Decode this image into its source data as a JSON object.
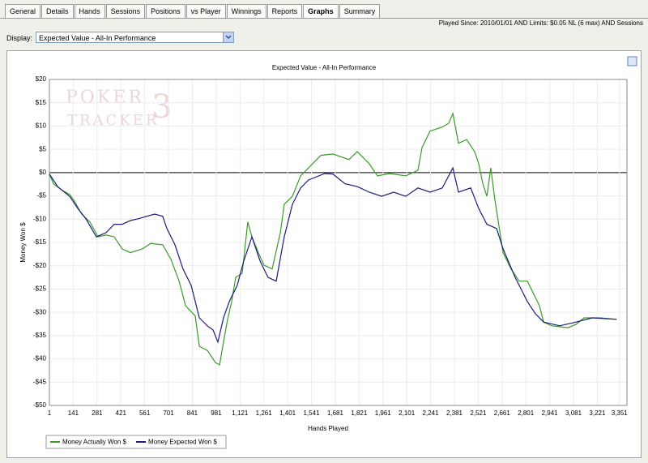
{
  "tabs": [
    "General",
    "Details",
    "Hands",
    "Sessions",
    "Positions",
    "vs Player",
    "Winnings",
    "Reports",
    "Graphs",
    "Summary"
  ],
  "active_tab": 8,
  "filter_text": "Played Since: 2010/01/01 AND Limits: $0.05 NL (6 max) AND Sessions",
  "display_label": "Display:",
  "display_value": "Expected Value - All-In Performance",
  "chart_data": {
    "type": "line",
    "title": "Expected Value - All-In Performance",
    "xlabel": "Hands Played",
    "ylabel": "Money Won $",
    "watermark": [
      "POKER",
      "TRACKER",
      "3"
    ],
    "xlim": [
      1,
      3395
    ],
    "ylim": [
      -50,
      20
    ],
    "xticks": [
      1,
      141,
      281,
      421,
      561,
      701,
      841,
      981,
      {
        "value": 1121,
        "label": "1,121"
      },
      {
        "value": 1261,
        "label": "1,261"
      },
      {
        "value": 1401,
        "label": "1,401"
      },
      {
        "value": 1541,
        "label": "1,541"
      },
      {
        "value": 1681,
        "label": "1,681"
      },
      {
        "value": 1821,
        "label": "1,821"
      },
      {
        "value": 1961,
        "label": "1,961"
      },
      {
        "value": 2101,
        "label": "2,101"
      },
      {
        "value": 2241,
        "label": "2,241"
      },
      {
        "value": 2381,
        "label": "2,381"
      },
      {
        "value": 2521,
        "label": "2,521"
      },
      {
        "value": 2661,
        "label": "2,661"
      },
      {
        "value": 2801,
        "label": "2,801"
      },
      {
        "value": 2941,
        "label": "2,941"
      },
      {
        "value": 3081,
        "label": "3,081"
      },
      {
        "value": 3221,
        "label": "3,221"
      },
      {
        "value": 3351,
        "label": "3,351"
      }
    ],
    "yticks": [
      {
        "value": 20,
        "label": "$20"
      },
      {
        "value": 15,
        "label": "$15"
      },
      {
        "value": 10,
        "label": "$10"
      },
      {
        "value": 5,
        "label": "$5"
      },
      {
        "value": 0,
        "label": "$0"
      },
      {
        "value": -5,
        "label": "-$5"
      },
      {
        "value": -10,
        "label": "-$10"
      },
      {
        "value": -15,
        "label": "-$15"
      },
      {
        "value": -20,
        "label": "-$20"
      },
      {
        "value": -25,
        "label": "-$25"
      },
      {
        "value": -30,
        "label": "-$30"
      },
      {
        "value": -35,
        "label": "-$35"
      },
      {
        "value": -40,
        "label": "-$40"
      },
      {
        "value": -45,
        "label": "-$45"
      },
      {
        "value": -50,
        "label": "-$50"
      }
    ],
    "grid": true,
    "zero_line": true,
    "legend": "bottom-left",
    "series": [
      {
        "name": "Money Actually Won $",
        "color": "#3a9a2a",
        "x": [
          1,
          25,
          72,
          120,
          144,
          191,
          239,
          287,
          334,
          382,
          429,
          477,
          548,
          596,
          667,
          715,
          763,
          801,
          858,
          882,
          929,
          977,
          1001,
          1024,
          1048,
          1072,
          1096,
          1134,
          1167,
          1191,
          1229,
          1262,
          1310,
          1358,
          1381,
          1429,
          1477,
          1524,
          1596,
          1667,
          1762,
          1810,
          1881,
          1929,
          2000,
          2095,
          2167,
          2191,
          2238,
          2310,
          2348,
          2372,
          2405,
          2453,
          2500,
          2524,
          2548,
          2572,
          2595,
          2619,
          2667,
          2714,
          2762,
          2810,
          2881,
          2905,
          2953,
          3048,
          3096,
          3143,
          3239,
          3334
        ],
        "values": [
          -0.3,
          -2.4,
          -3.7,
          -4.7,
          -5.9,
          -8.9,
          -10.6,
          -13.8,
          -13.4,
          -13.8,
          -16.4,
          -17.2,
          -16.4,
          -15.2,
          -15.5,
          -18.6,
          -23.3,
          -28.6,
          -30.8,
          -37.3,
          -38.2,
          -40.8,
          -41.3,
          -36.4,
          -31.5,
          -27.7,
          -22.5,
          -21.6,
          -10.6,
          -13.8,
          -17.2,
          -19.9,
          -20.7,
          -12.9,
          -6.8,
          -5.1,
          -0.7,
          1.0,
          3.7,
          4.0,
          2.8,
          4.5,
          1.9,
          -0.7,
          -0.2,
          -0.7,
          0.5,
          5.4,
          8.9,
          9.8,
          10.6,
          12.7,
          6.3,
          7.1,
          4.5,
          1.9,
          -2.4,
          -5.1,
          1.0,
          -5.9,
          -17.2,
          -20.7,
          -23.3,
          -23.3,
          -28.6,
          -32.1,
          -32.9,
          -33.3,
          -32.6,
          -31.2,
          -31.2,
          -31.5
        ]
      },
      {
        "name": "Money Expected Won $",
        "color": "#1c1c7a",
        "x": [
          1,
          49,
          120,
          168,
          215,
          277,
          334,
          382,
          429,
          477,
          525,
          572,
          620,
          667,
          691,
          739,
          786,
          834,
          882,
          929,
          963,
          991,
          1024,
          1058,
          1105,
          1143,
          1191,
          1239,
          1286,
          1334,
          1381,
          1429,
          1477,
          1524,
          1619,
          1667,
          1738,
          1810,
          1881,
          1953,
          2024,
          2095,
          2167,
          2238,
          2310,
          2372,
          2405,
          2477,
          2524,
          2572,
          2629,
          2667,
          2738,
          2810,
          2857,
          2905,
          3000,
          3096,
          3191,
          3334
        ],
        "values": [
          -0.3,
          -3.0,
          -5.1,
          -7.7,
          -9.9,
          -13.8,
          -12.9,
          -11.1,
          -11.1,
          -10.3,
          -9.9,
          -9.4,
          -8.9,
          -9.4,
          -12.0,
          -15.5,
          -20.7,
          -24.2,
          -31.2,
          -32.9,
          -33.8,
          -36.4,
          -31.2,
          -27.7,
          -24.2,
          -19.0,
          -13.8,
          -19.0,
          -22.5,
          -23.3,
          -13.8,
          -6.8,
          -3.3,
          -1.6,
          -0.2,
          -0.3,
          -2.4,
          -3.0,
          -4.2,
          -5.1,
          -4.2,
          -5.1,
          -3.3,
          -4.2,
          -3.3,
          1.0,
          -4.2,
          -3.3,
          -7.7,
          -11.1,
          -12.0,
          -16.4,
          -22.5,
          -27.7,
          -30.3,
          -32.1,
          -32.9,
          -32.1,
          -31.2,
          -31.5
        ]
      }
    ]
  }
}
